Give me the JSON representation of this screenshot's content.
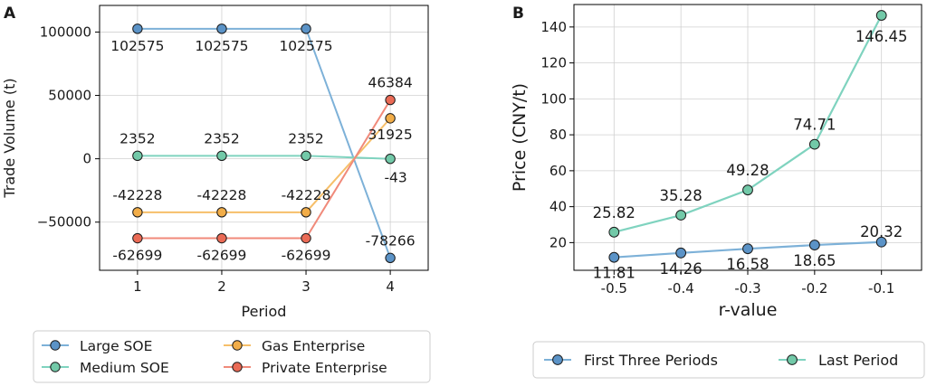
{
  "chart_data": [
    {
      "panel": "A",
      "type": "line",
      "xlabel": "Period",
      "ylabel": "Trade Volume (t)",
      "x": [
        1,
        2,
        3,
        4
      ],
      "xticks": [
        "1",
        "2",
        "3",
        "4"
      ],
      "yticks": [
        -50000,
        0,
        50000,
        100000
      ],
      "ytick_labels": [
        "−50000",
        "0",
        "50000",
        "100000"
      ],
      "ylim": [
        -88000,
        121000
      ],
      "xlim": [
        0.55,
        4.45
      ],
      "grid": true,
      "legend_position": "below",
      "legend_columns": 2,
      "series": [
        {
          "name": "Large SOE",
          "color": "#7db1d8",
          "marker": "#5b93c7",
          "values": [
            102575,
            102575,
            102575,
            -78266
          ],
          "labels": [
            "102575",
            "102575",
            "102575",
            "-78266"
          ]
        },
        {
          "name": "Medium SOE",
          "color": "#7fd3bf",
          "marker": "#72c9a8",
          "values": [
            2352,
            2352,
            2352,
            -43
          ],
          "labels": [
            "2352",
            "2352",
            "2352",
            "-43"
          ]
        },
        {
          "name": "Gas Enterprise",
          "color": "#f6bf6a",
          "marker": "#f2ad48",
          "values": [
            -42228,
            -42228,
            -42228,
            31925
          ],
          "labels": [
            "-42228",
            "-42228",
            "-42228",
            "31925"
          ]
        },
        {
          "name": "Private Enterprise",
          "color": "#f08a7a",
          "marker": "#ea6a55",
          "values": [
            -62699,
            -62699,
            -62699,
            46384
          ],
          "labels": [
            "-62699",
            "-62699",
            "-62699",
            "46384"
          ]
        }
      ],
      "legend_order": [
        "Large SOE",
        "Gas Enterprise",
        "Medium SOE",
        "Private Enterprise"
      ]
    },
    {
      "panel": "B",
      "type": "line",
      "xlabel": "r-value",
      "ylabel": "Price (CNY/t)",
      "x": [
        -0.5,
        -0.4,
        -0.3,
        -0.2,
        -0.1
      ],
      "xticks": [
        "-0.5",
        "-0.4",
        "-0.3",
        "-0.2",
        "-0.1"
      ],
      "yticks": [
        20,
        40,
        60,
        80,
        100,
        120,
        140
      ],
      "xlim": [
        -0.56,
        -0.04
      ],
      "ylim": [
        4.6,
        152.5
      ],
      "grid": true,
      "legend_position": "below",
      "legend_columns": 2,
      "series": [
        {
          "name": "First Three Periods",
          "color": "#7db1d8",
          "marker": "#5b93c7",
          "values": [
            11.81,
            14.26,
            16.58,
            18.65,
            20.32
          ],
          "labels": [
            "11.81",
            "14.26",
            "16.58",
            "18.65",
            "20.32"
          ]
        },
        {
          "name": "Last Period",
          "color": "#7fd3bf",
          "marker": "#72c9a8",
          "values": [
            25.82,
            35.28,
            49.28,
            74.71,
            146.45
          ],
          "labels": [
            "25.82",
            "35.28",
            "49.28",
            "74.71",
            "146.45"
          ]
        }
      ]
    }
  ]
}
